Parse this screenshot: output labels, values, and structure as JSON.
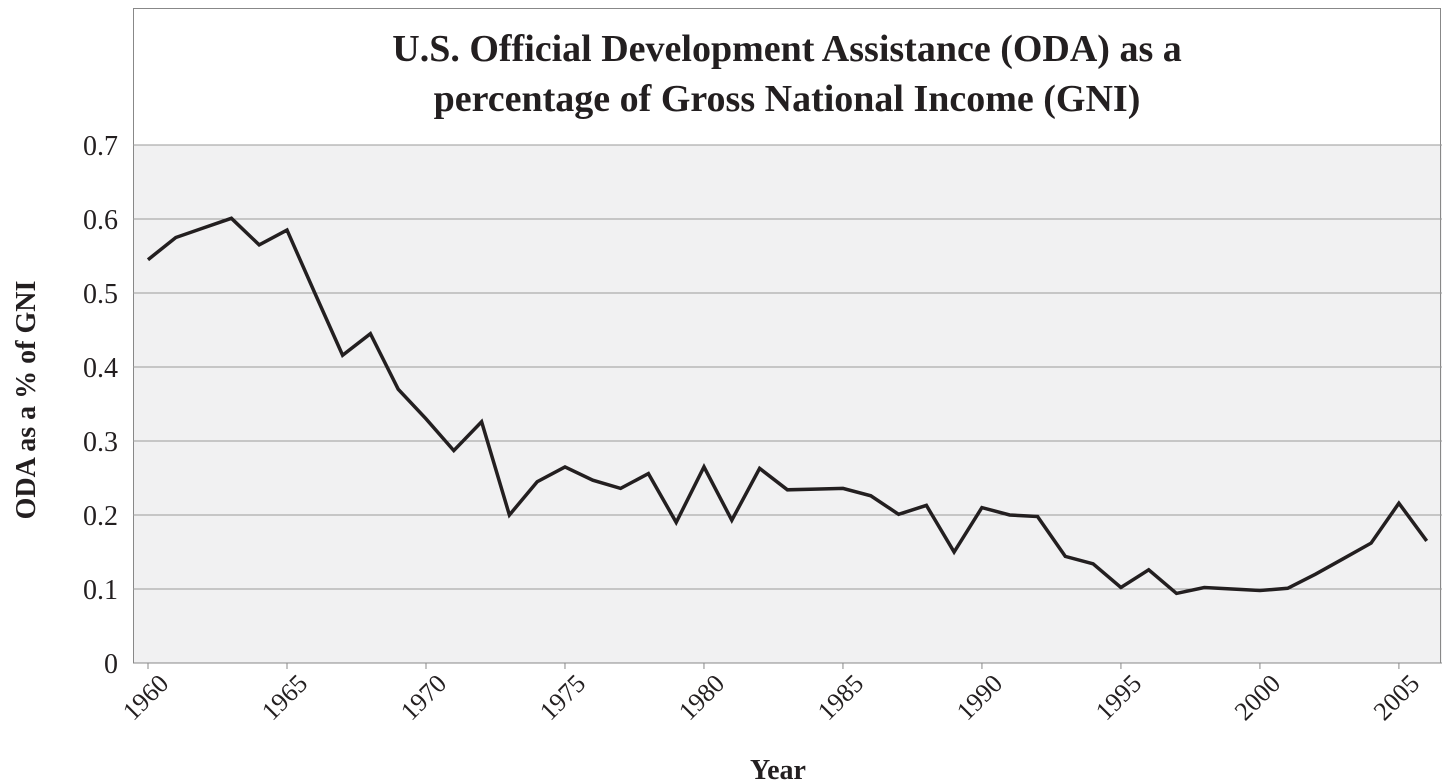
{
  "chart_data": {
    "type": "line",
    "title": "U.S. Official Development Assistance (ODA) as a percentage of Gross National Income (GNI)",
    "x_label": "Year",
    "y_label": "ODA as a % of GNI",
    "x": [
      1960,
      1961,
      1962,
      1963,
      1964,
      1965,
      1966,
      1967,
      1968,
      1969,
      1970,
      1971,
      1972,
      1973,
      1974,
      1975,
      1976,
      1977,
      1978,
      1979,
      1980,
      1981,
      1982,
      1983,
      1984,
      1985,
      1986,
      1987,
      1988,
      1989,
      1990,
      1991,
      1992,
      1993,
      1994,
      1995,
      1996,
      1997,
      1998,
      1999,
      2000,
      2001,
      2002,
      2003,
      2004,
      2005,
      2006
    ],
    "values": [
      0.545,
      0.575,
      0.588,
      0.601,
      0.565,
      0.585,
      0.5,
      0.416,
      0.445,
      0.37,
      0.33,
      0.287,
      0.326,
      0.2,
      0.245,
      0.265,
      0.247,
      0.236,
      0.256,
      0.19,
      0.265,
      0.193,
      0.263,
      0.234,
      0.235,
      0.236,
      0.226,
      0.201,
      0.213,
      0.15,
      0.21,
      0.2,
      0.198,
      0.144,
      0.134,
      0.102,
      0.126,
      0.094,
      0.102,
      0.1,
      0.098,
      0.101,
      0.12,
      0.141,
      0.162,
      0.216,
      0.165
    ],
    "color": "#231f20",
    "xlim": [
      1959.46,
      2006.55
    ],
    "xticks": [
      1960,
      1965,
      1970,
      1975,
      1980,
      1985,
      1990,
      1995,
      2000,
      2005
    ],
    "ylim": [
      0,
      0.7
    ],
    "yticks": [
      0,
      0.1,
      0.2,
      0.3,
      0.4,
      0.5,
      0.6,
      0.7
    ],
    "grid": true
  }
}
